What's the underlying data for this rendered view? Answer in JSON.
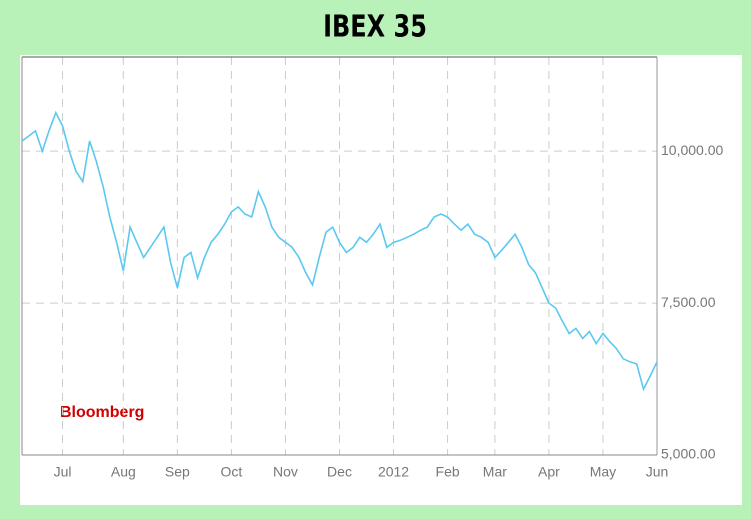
{
  "chart_data": {
    "type": "line",
    "title": "IBEX 35",
    "annotation": "Bloomberg",
    "categories": [
      null,
      null,
      null,
      null,
      null,
      null,
      "Jul",
      null,
      null,
      null,
      null,
      null,
      null,
      null,
      null,
      "Aug",
      null,
      null,
      null,
      null,
      null,
      null,
      null,
      "Sep",
      null,
      null,
      null,
      null,
      null,
      null,
      null,
      "Oct",
      null,
      null,
      null,
      null,
      null,
      null,
      null,
      "Nov",
      null,
      null,
      null,
      null,
      null,
      null,
      null,
      "Dec",
      null,
      null,
      null,
      null,
      null,
      null,
      null,
      "2012",
      null,
      null,
      null,
      null,
      null,
      null,
      null,
      "Feb",
      null,
      null,
      null,
      null,
      null,
      null,
      "Mar",
      null,
      null,
      null,
      null,
      null,
      null,
      null,
      "Apr",
      null,
      null,
      null,
      null,
      null,
      null,
      null,
      "May",
      null,
      null,
      null,
      null,
      null,
      null,
      null,
      "Jun"
    ],
    "values": [
      10167,
      10250,
      10333,
      10000,
      10333,
      10633,
      10417,
      10000,
      9667,
      9500,
      10167,
      9833,
      9417,
      8917,
      8500,
      8033,
      8750,
      8500,
      8250,
      8417,
      8583,
      8750,
      8167,
      7750,
      8250,
      8333,
      7917,
      8250,
      8500,
      8633,
      8800,
      9000,
      9083,
      8967,
      8917,
      9333,
      9083,
      8750,
      8583,
      8500,
      8417,
      8250,
      8000,
      7800,
      8250,
      8667,
      8750,
      8500,
      8333,
      8417,
      8583,
      8500,
      8633,
      8800,
      8417,
      8500,
      8533,
      8583,
      8633,
      8700,
      8750,
      8917,
      8967,
      8917,
      8800,
      8700,
      8800,
      8633,
      8583,
      8500,
      8250,
      8367,
      8500,
      8633,
      8417,
      8133,
      8000,
      7750,
      7500,
      7417,
      7200,
      7000,
      7083,
      6917,
      7033,
      6833,
      7000,
      6867,
      6750,
      6583,
      6533,
      6500,
      6083,
      6300,
      6533
    ],
    "color": "#5bc8f0",
    "ylim": [
      5000,
      11550
    ],
    "yticks": [
      {
        "value": 5000,
        "label": "5,000.00"
      },
      {
        "value": 7500,
        "label": "7,500.00"
      },
      {
        "value": 10000,
        "label": "10,000.00"
      }
    ],
    "grid": true
  }
}
